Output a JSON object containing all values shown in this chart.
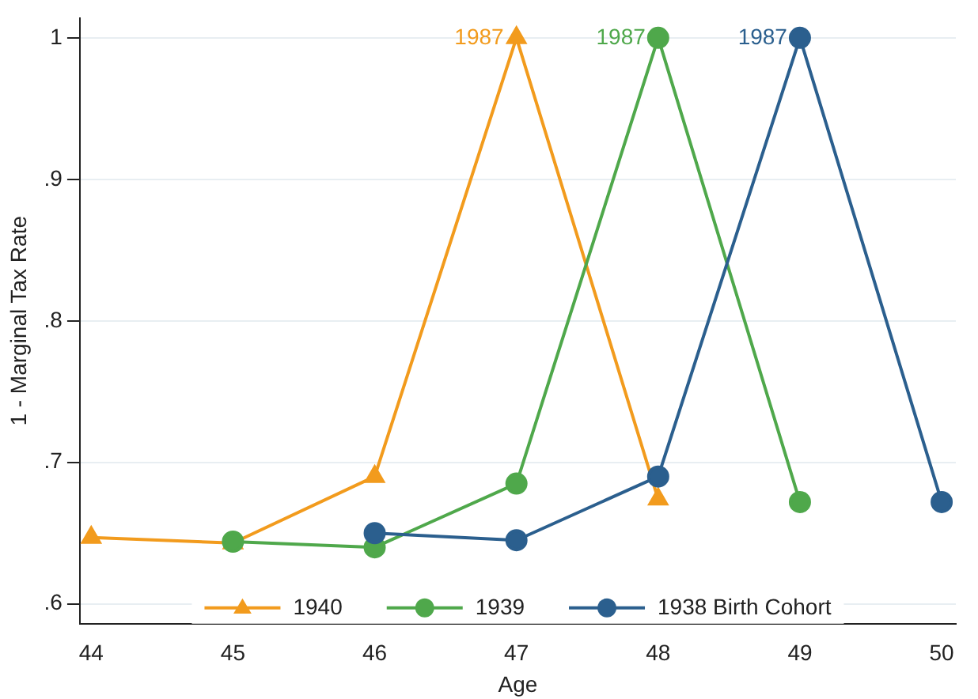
{
  "chart_data": {
    "type": "line",
    "xlabel": "Age",
    "ylabel": "1 - Marginal Tax Rate",
    "xlim": [
      43.92,
      50.1
    ],
    "xticks": [
      44,
      45,
      46,
      47,
      48,
      49,
      50
    ],
    "ylim": [
      0.586,
      1.014
    ],
    "yticks": [
      {
        "value": 0.6,
        "label": ".6"
      },
      {
        "value": 0.7,
        "label": ".7"
      },
      {
        "value": 0.8,
        "label": ".8"
      },
      {
        "value": 0.9,
        "label": ".9"
      },
      1
    ],
    "grid": "y",
    "legend": "bottom",
    "line_style": "solid",
    "series": [
      {
        "name": "1940",
        "color": "#f29b1d",
        "marker": "triangle",
        "x": [
          44,
          45,
          46,
          47,
          48
        ],
        "values": [
          0.647,
          0.643,
          0.69,
          1,
          0.674
        ]
      },
      {
        "name": "1939",
        "color": "#4fa84b",
        "marker": "circle",
        "x": [
          45,
          46,
          47,
          48,
          49
        ],
        "values": [
          0.644,
          0.64,
          0.685,
          1,
          0.672
        ]
      },
      {
        "name": "1938 Birth Cohort",
        "color": "#2b5f8e",
        "marker": "circle",
        "x": [
          46,
          47,
          48,
          49,
          50
        ],
        "values": [
          0.65,
          0.645,
          0.69,
          1,
          0.672
        ]
      }
    ],
    "annotations": [
      {
        "text": "1987",
        "x": 47,
        "y": 1
      },
      {
        "text": "1987",
        "x": 48,
        "y": 1
      },
      {
        "text": "1987",
        "x": 49,
        "y": 1
      }
    ]
  }
}
